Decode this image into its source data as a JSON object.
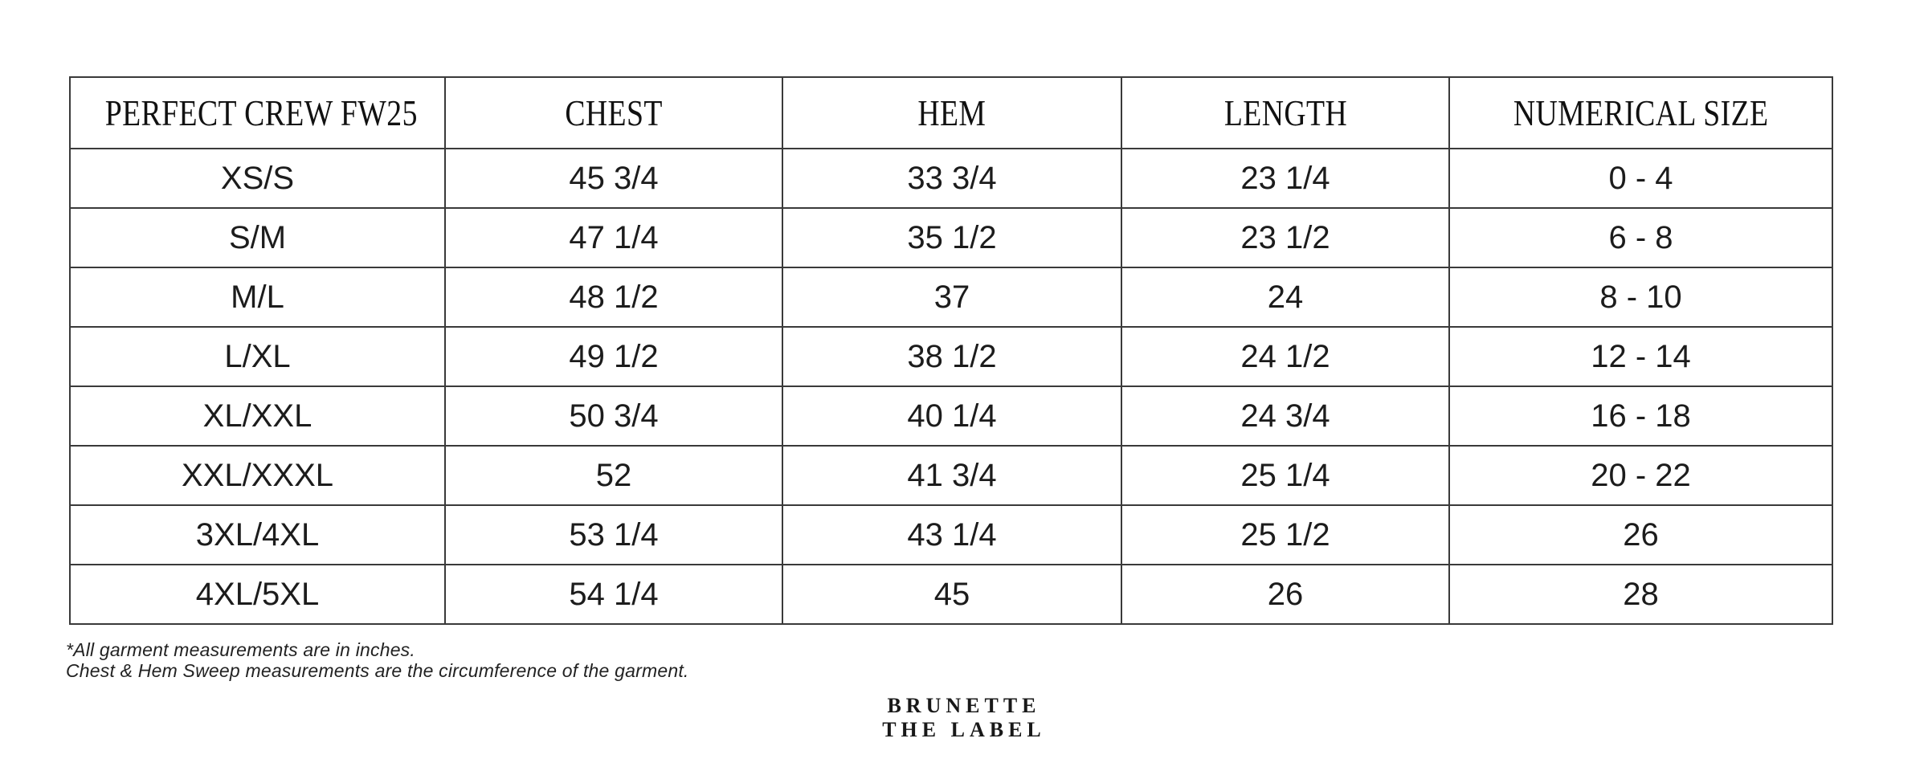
{
  "table": {
    "headers": {
      "product": "PERFECT CREW FW25",
      "chest": "CHEST",
      "hem": "HEM",
      "length": "LENGTH",
      "numerical_size": "NUMERICAL SIZE"
    },
    "rows": [
      {
        "size": "XS/S",
        "chest": "45 3/4",
        "hem": "33 3/4",
        "length": "23 1/4",
        "numerical_size": "0 - 4"
      },
      {
        "size": "S/M",
        "chest": "47 1/4",
        "hem": "35 1/2",
        "length": "23 1/2",
        "numerical_size": "6 - 8"
      },
      {
        "size": "M/L",
        "chest": "48 1/2",
        "hem": "37",
        "length": "24",
        "numerical_size": "8 - 10"
      },
      {
        "size": "L/XL",
        "chest": "49 1/2",
        "hem": "38 1/2",
        "length": "24 1/2",
        "numerical_size": "12 - 14"
      },
      {
        "size": "XL/XXL",
        "chest": "50 3/4",
        "hem": "40 1/4",
        "length": "24 3/4",
        "numerical_size": "16 - 18"
      },
      {
        "size": "XXL/XXXL",
        "chest": "52",
        "hem": "41 3/4",
        "length": "25 1/4",
        "numerical_size": "20 - 22"
      },
      {
        "size": "3XL/4XL",
        "chest": "53 1/4",
        "hem": "43 1/4",
        "length": "25 1/2",
        "numerical_size": "26"
      },
      {
        "size": "4XL/5XL",
        "chest": "54 1/4",
        "hem": "45",
        "length": "26",
        "numerical_size": "28"
      }
    ],
    "border_color": "#3a3a3a"
  },
  "notes": {
    "line1": "*All garment measurements are in inches.",
    "line2": "Chest & Hem Sweep measurements are the circumference of the garment."
  },
  "logo": {
    "line1": "BRUNETTE",
    "line2": "THE LABEL"
  },
  "colors": {
    "background": "#ffffff",
    "text": "#1c1c1c"
  }
}
